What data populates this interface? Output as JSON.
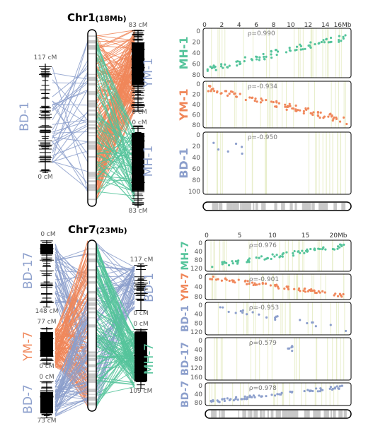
{
  "colors": {
    "bd": "#8c9fcc",
    "ym": "#f0875a",
    "mh": "#55c49b",
    "axis": "#000000",
    "grid": "#e8eecb",
    "band": "#c8c8c8",
    "text": "#555555"
  },
  "top": {
    "title": "Chr1",
    "title_suffix": "(18Mb)",
    "maps": {
      "bd": {
        "label": "BD-1",
        "top_label": "117 cM",
        "bottom_label": "0 cM"
      },
      "ym": {
        "label": "YM-1",
        "top_label": "83 cM",
        "bottom_label": "0 cM"
      },
      "mh": {
        "label": "MH-1",
        "top_label": "0 cM",
        "bottom_label": "83 cM"
      }
    },
    "phys_axis": {
      "ticks": [
        "0",
        "2",
        "4",
        "6",
        "8",
        "10",
        "12",
        "14",
        "16Mb"
      ]
    },
    "panels": [
      {
        "label": "MH-1",
        "rho": "ρ=0.990",
        "color_key": "mh",
        "ticks": [
          "0",
          "20",
          "40",
          "60",
          "80"
        ]
      },
      {
        "label": "YM-1",
        "rho": "ρ=-0.934",
        "color_key": "ym",
        "ticks": [
          "0",
          "20",
          "40",
          "60",
          "80"
        ]
      },
      {
        "label": "BD-1",
        "rho": "ρ=-0.950",
        "color_key": "bd",
        "ticks": [
          "0",
          "20",
          "40",
          "60",
          "80",
          "100"
        ]
      }
    ]
  },
  "bottom": {
    "title": "Chr7",
    "title_suffix": "(23Mb)",
    "maps": {
      "bd17": {
        "label": "BD-17",
        "top_label": "0 cM",
        "bottom_label": "148 cM"
      },
      "ym": {
        "label": "YM-7",
        "top_label": "77 cM",
        "bottom_label": "0 cM"
      },
      "bd7": {
        "label": "BD-7",
        "top_label": "0 cM",
        "bottom_label": "73 cM"
      },
      "bd1": {
        "label": "BD-1",
        "top_label": "117 cM",
        "bottom_label": "0 cM"
      },
      "mh": {
        "label": "MH-7",
        "top_label": "0 cM",
        "bottom_label": "109 cM"
      }
    },
    "phys_axis": {
      "ticks": [
        "0",
        "5",
        "10",
        "15",
        "20Mb"
      ]
    },
    "panels": [
      {
        "label": "MH-7",
        "rho": "ρ=0.976",
        "color_key": "mh",
        "ticks": [
          "0",
          "40",
          "80",
          "120"
        ]
      },
      {
        "label": "YM-7",
        "rho": "ρ=-0.901",
        "color_key": "ym",
        "ticks": [
          "0",
          "40",
          "80"
        ]
      },
      {
        "label": "BD-1",
        "rho": "ρ=-0.953",
        "color_key": "bd",
        "ticks": [
          "0",
          "40",
          "80",
          "120"
        ]
      },
      {
        "label": "BD-17",
        "rho": "ρ=0.579",
        "color_key": "bd",
        "ticks": [
          "0",
          "40",
          "80",
          "120",
          "160"
        ]
      },
      {
        "label": "BD-7",
        "rho": "ρ=0.978",
        "color_key": "bd",
        "ticks": [
          "0",
          "40",
          "80"
        ]
      }
    ]
  }
}
